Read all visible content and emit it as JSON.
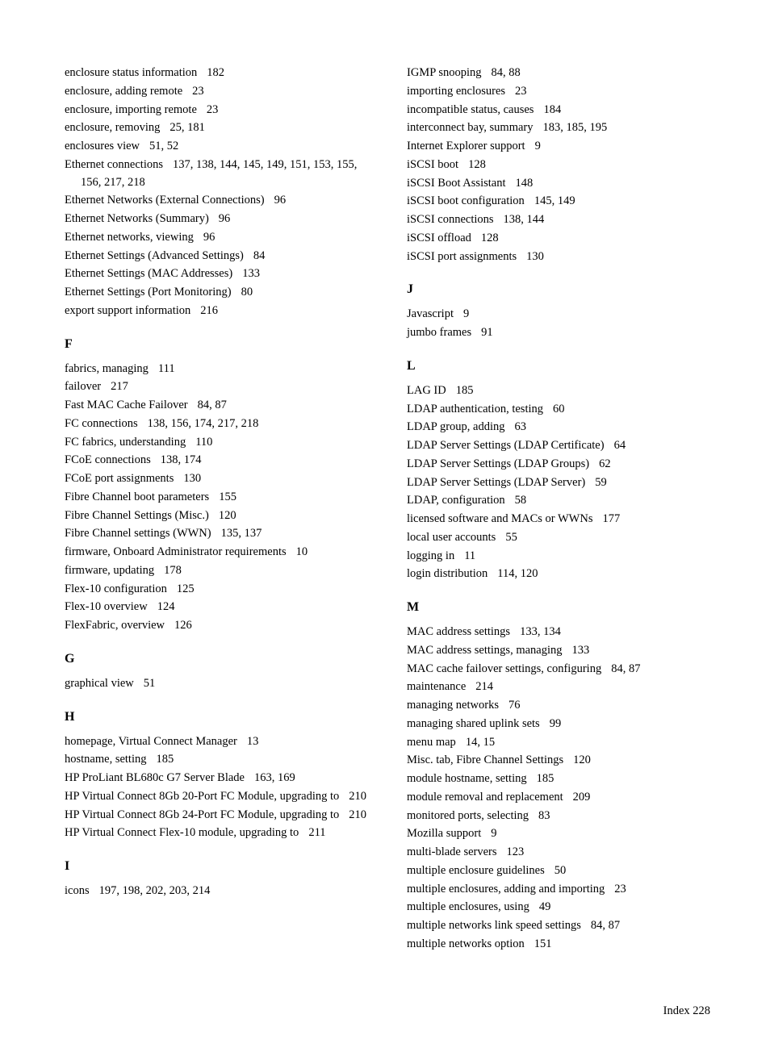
{
  "left": {
    "continuedE": [
      {
        "term": "enclosure status information",
        "pages": "182"
      },
      {
        "term": "enclosure, adding remote",
        "pages": "23"
      },
      {
        "term": "enclosure, importing remote",
        "pages": "23"
      },
      {
        "term": "enclosure, removing",
        "pages": "25, 181"
      },
      {
        "term": "enclosures view",
        "pages": "51, 52"
      },
      {
        "term": "Ethernet connections",
        "pages": "137, 138, 144, 145, 149, 151, 153, 155, 156, 217, 218"
      },
      {
        "term": "Ethernet Networks (External Connections)",
        "pages": "96"
      },
      {
        "term": "Ethernet Networks (Summary)",
        "pages": "96"
      },
      {
        "term": "Ethernet networks, viewing",
        "pages": "96"
      },
      {
        "term": "Ethernet Settings (Advanced Settings)",
        "pages": "84"
      },
      {
        "term": "Ethernet Settings (MAC Addresses)",
        "pages": "133"
      },
      {
        "term": "Ethernet Settings (Port Monitoring)",
        "pages": "80"
      },
      {
        "term": "export support information",
        "pages": "216"
      }
    ],
    "F": [
      {
        "term": "fabrics, managing",
        "pages": "111"
      },
      {
        "term": "failover",
        "pages": "217"
      },
      {
        "term": "Fast MAC Cache Failover",
        "pages": "84, 87"
      },
      {
        "term": "FC connections",
        "pages": "138, 156, 174, 217, 218"
      },
      {
        "term": "FC fabrics, understanding",
        "pages": "110"
      },
      {
        "term": "FCoE connections",
        "pages": "138, 174"
      },
      {
        "term": "FCoE port assignments",
        "pages": "130"
      },
      {
        "term": "Fibre Channel boot parameters",
        "pages": "155"
      },
      {
        "term": "Fibre Channel Settings (Misc.)",
        "pages": "120"
      },
      {
        "term": "Fibre Channel settings (WWN)",
        "pages": "135, 137"
      },
      {
        "term": "firmware, Onboard Administrator requirements",
        "pages": "10"
      },
      {
        "term": "firmware, updating",
        "pages": "178"
      },
      {
        "term": "Flex-10 configuration",
        "pages": "125"
      },
      {
        "term": "Flex-10 overview",
        "pages": "124"
      },
      {
        "term": "FlexFabric, overview",
        "pages": "126"
      }
    ],
    "G": [
      {
        "term": "graphical view",
        "pages": "51"
      }
    ],
    "H": [
      {
        "term": "homepage, Virtual Connect Manager",
        "pages": "13"
      },
      {
        "term": "hostname, setting",
        "pages": "185"
      },
      {
        "term": "HP ProLiant BL680c G7 Server Blade",
        "pages": "163, 169"
      },
      {
        "term": "HP Virtual Connect 8Gb 20-Port FC Module, upgrading to",
        "pages": "210"
      },
      {
        "term": "HP Virtual Connect 8Gb 24-Port FC Module, upgrading to",
        "pages": "210"
      },
      {
        "term": "HP Virtual Connect Flex-10 module, upgrading to",
        "pages": "211"
      }
    ],
    "I": [
      {
        "term": "icons",
        "pages": "197, 198, 202, 203, 214"
      }
    ]
  },
  "right": {
    "continuedI": [
      {
        "term": "IGMP snooping",
        "pages": "84, 88"
      },
      {
        "term": "importing enclosures",
        "pages": "23"
      },
      {
        "term": "incompatible status, causes",
        "pages": "184"
      },
      {
        "term": "interconnect bay, summary",
        "pages": "183, 185, 195"
      },
      {
        "term": "Internet Explorer support",
        "pages": "9"
      },
      {
        "term": "iSCSI boot",
        "pages": "128"
      },
      {
        "term": "iSCSI Boot Assistant",
        "pages": "148"
      },
      {
        "term": "iSCSI boot configuration",
        "pages": "145, 149"
      },
      {
        "term": "iSCSI connections",
        "pages": "138, 144"
      },
      {
        "term": "iSCSI offload",
        "pages": "128"
      },
      {
        "term": "iSCSI port assignments",
        "pages": "130"
      }
    ],
    "J": [
      {
        "term": "Javascript",
        "pages": "9"
      },
      {
        "term": "jumbo frames",
        "pages": "91"
      }
    ],
    "L": [
      {
        "term": "LAG ID",
        "pages": "185"
      },
      {
        "term": "LDAP authentication, testing",
        "pages": "60"
      },
      {
        "term": "LDAP group, adding",
        "pages": "63"
      },
      {
        "term": "LDAP Server Settings (LDAP Certificate)",
        "pages": "64"
      },
      {
        "term": "LDAP Server Settings (LDAP Groups)",
        "pages": "62"
      },
      {
        "term": "LDAP Server Settings (LDAP Server)",
        "pages": "59"
      },
      {
        "term": "LDAP, configuration",
        "pages": "58"
      },
      {
        "term": "licensed software and MACs or WWNs",
        "pages": "177"
      },
      {
        "term": "local user accounts",
        "pages": "55"
      },
      {
        "term": "logging in",
        "pages": "11"
      },
      {
        "term": "login distribution",
        "pages": "114, 120"
      }
    ],
    "M": [
      {
        "term": "MAC address settings",
        "pages": "133, 134"
      },
      {
        "term": "MAC address settings, managing",
        "pages": "133"
      },
      {
        "term": "MAC cache failover settings, configuring",
        "pages": "84, 87"
      },
      {
        "term": "maintenance",
        "pages": "214"
      },
      {
        "term": "managing networks",
        "pages": "76"
      },
      {
        "term": "managing shared uplink sets",
        "pages": "99"
      },
      {
        "term": "menu map",
        "pages": "14, 15"
      },
      {
        "term": "Misc. tab, Fibre Channel Settings",
        "pages": "120"
      },
      {
        "term": "module hostname, setting",
        "pages": "185"
      },
      {
        "term": "module removal and replacement",
        "pages": "209"
      },
      {
        "term": "monitored ports, selecting",
        "pages": "83"
      },
      {
        "term": "Mozilla support",
        "pages": "9"
      },
      {
        "term": "multi-blade servers",
        "pages": "123"
      },
      {
        "term": "multiple enclosure guidelines",
        "pages": "50"
      },
      {
        "term": "multiple enclosures, adding and importing",
        "pages": "23"
      },
      {
        "term": "multiple enclosures, using",
        "pages": "49"
      },
      {
        "term": "multiple networks link speed settings",
        "pages": "84, 87"
      },
      {
        "term": "multiple networks option",
        "pages": "151"
      }
    ]
  },
  "footer": {
    "label": "Index",
    "page": "228"
  },
  "letters": {
    "F": "F",
    "G": "G",
    "H": "H",
    "I": "I",
    "J": "J",
    "L": "L",
    "M": "M"
  }
}
